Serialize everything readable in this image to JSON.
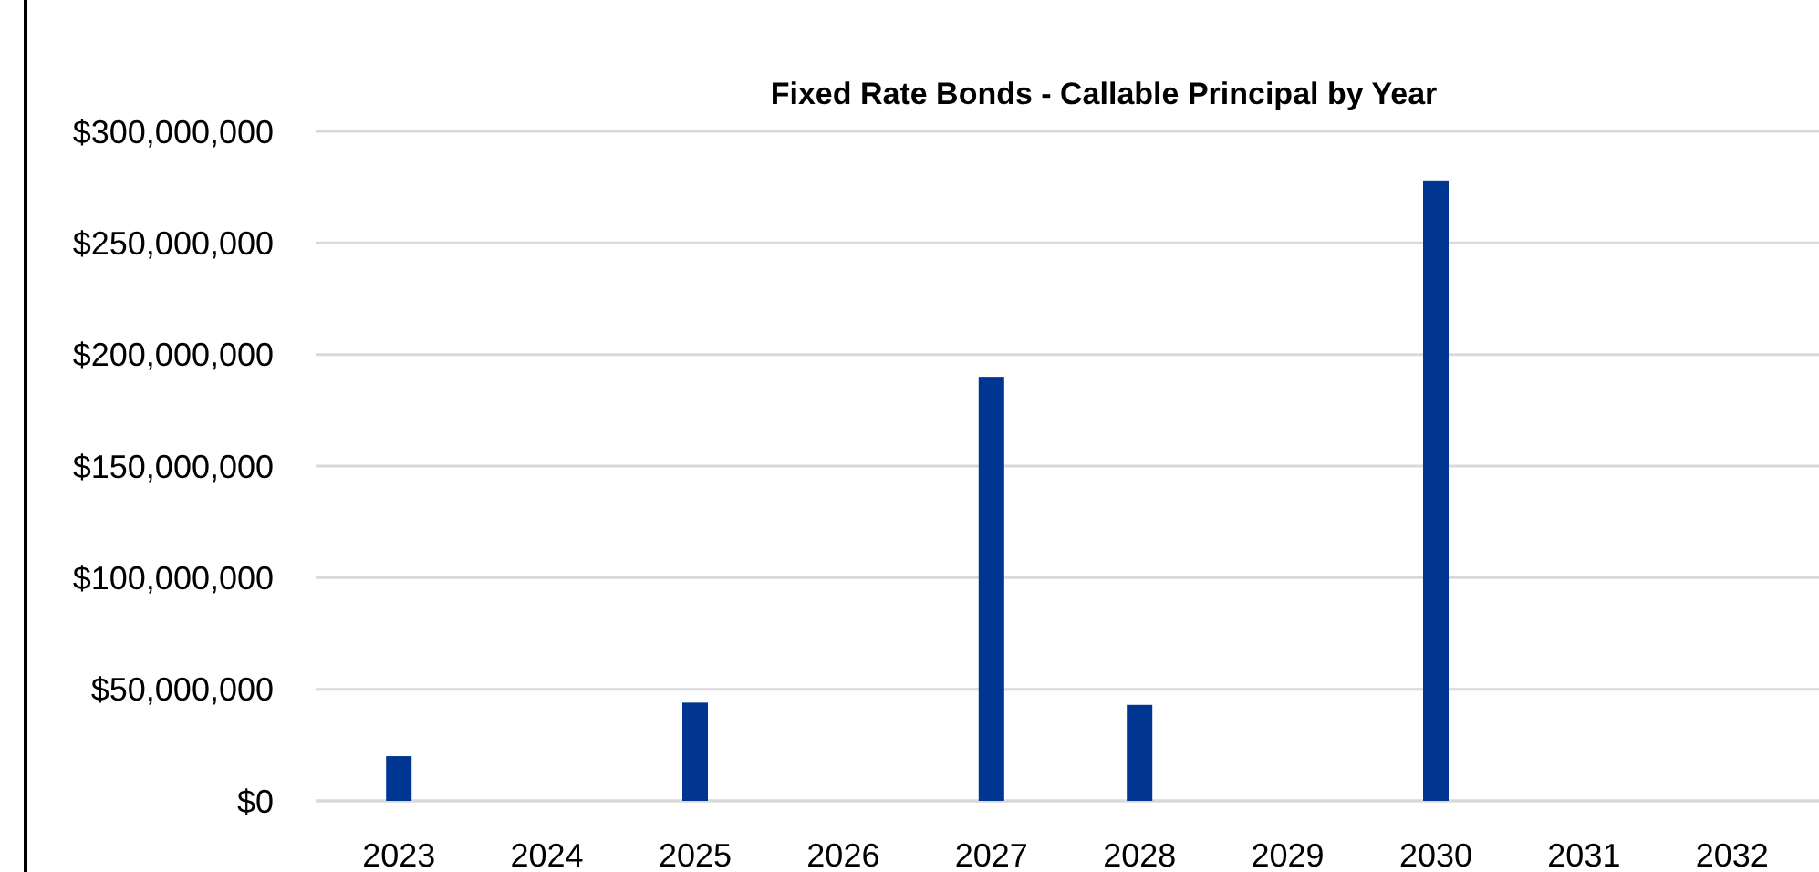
{
  "chart_data": {
    "type": "bar",
    "title": "Fixed Rate Bonds - Callable Principal by Year",
    "categories": [
      "2023",
      "2024",
      "2025",
      "2026",
      "2027",
      "2028",
      "2029",
      "2030",
      "2031",
      "2032"
    ],
    "values": [
      20000000,
      0,
      44000000,
      0,
      190000000,
      43000000,
      0,
      278000000,
      0,
      0
    ],
    "color": "#003591",
    "ylim": [
      0,
      300000000
    ],
    "yticks": [
      {
        "value": 0,
        "label": "$0"
      },
      {
        "value": 50000000,
        "label": "$50,000,000"
      },
      {
        "value": 100000000,
        "label": "$100,000,000"
      },
      {
        "value": 150000000,
        "label": "$150,000,000"
      },
      {
        "value": 200000000,
        "label": "$200,000,000"
      },
      {
        "value": 250000000,
        "label": "$250,000,000"
      },
      {
        "value": 300000000,
        "label": "$300,000,000"
      }
    ],
    "grid": "y"
  }
}
